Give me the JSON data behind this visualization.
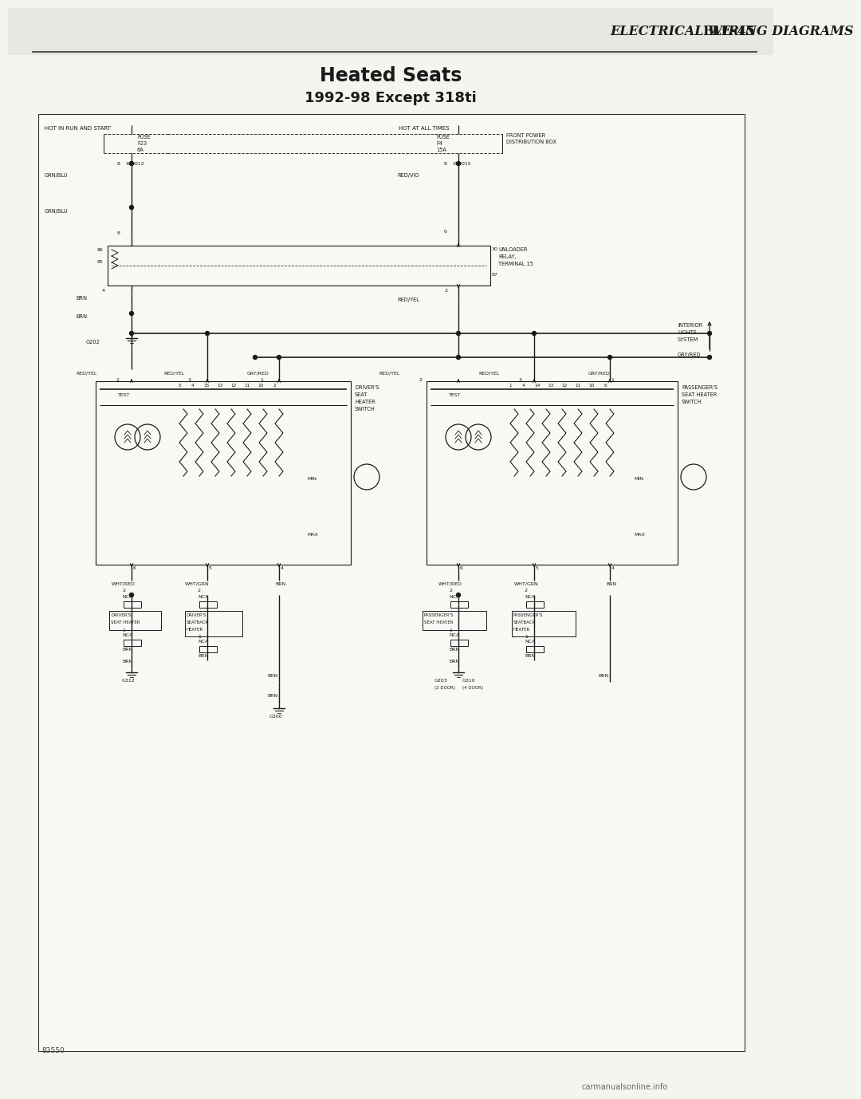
{
  "title_header": "ELECTRICAL WIRING DIAGRAMS   ELE–245",
  "title_main": "Heated Seats",
  "title_sub": "1992-98 Except 318ti",
  "page_num": "83550",
  "watermark": "carmanualsonline.info",
  "bg_color": "#f5f5f0",
  "border_color": "#1a1a1a",
  "line_color": "#1a1a1a",
  "dashed_color": "#333333",
  "text_color": "#1a1a1a",
  "header_line_color": "#333333"
}
